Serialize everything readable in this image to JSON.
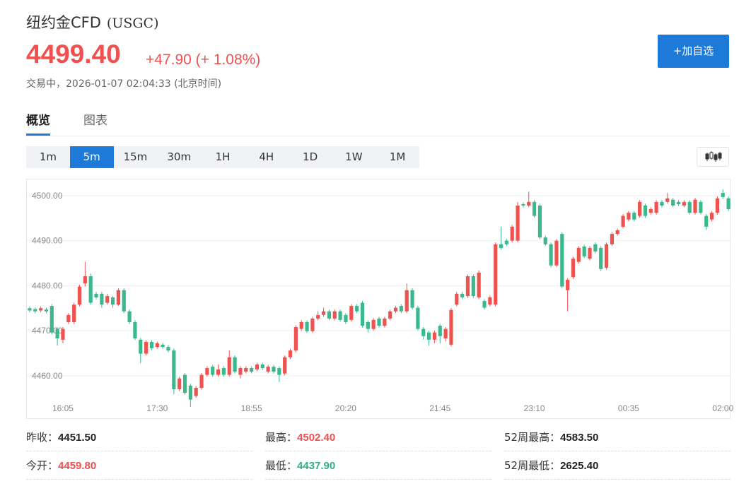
{
  "header": {
    "title": "纽约金CFD",
    "code": "(USGC)",
    "price": "4499.40",
    "change": "+47.90",
    "change_pct": "(+ 1.08%)",
    "status": "交易中，2026-01-07 02:04:33 (北京时间)"
  },
  "button": "+加自选",
  "tabs": [
    "概览",
    "图表"
  ],
  "intervals": [
    "1m",
    "5m",
    "15m",
    "30m",
    "1H",
    "4H",
    "1D",
    "1W",
    "1M"
  ],
  "chart_data": {
    "type": "candlestick",
    "up_color": "#ef5350",
    "down_color": "#3cb98c",
    "grid": true,
    "ylim": [
      4451.5,
      4503.6
    ],
    "yticks": [
      {
        "value": 4460,
        "label": "4460.00"
      },
      {
        "value": 4470,
        "label": "4470.00"
      },
      {
        "value": 4480,
        "label": "4480.00"
      },
      {
        "value": 4490,
        "label": "4490.00"
      },
      {
        "value": 4500,
        "label": "4500.00"
      }
    ],
    "categories": [
      null,
      null,
      null,
      null,
      null,
      null,
      "16:05",
      null,
      null,
      null,
      null,
      null,
      null,
      null,
      null,
      null,
      null,
      null,
      null,
      null,
      null,
      null,
      null,
      "17:30",
      null,
      null,
      null,
      null,
      null,
      null,
      null,
      null,
      null,
      null,
      null,
      null,
      null,
      null,
      null,
      null,
      "18:55",
      null,
      null,
      null,
      null,
      null,
      null,
      null,
      null,
      null,
      null,
      null,
      null,
      null,
      null,
      null,
      null,
      "20:20",
      null,
      null,
      null,
      null,
      null,
      null,
      null,
      null,
      null,
      null,
      null,
      null,
      null,
      null,
      null,
      null,
      "21:45",
      null,
      null,
      null,
      null,
      null,
      null,
      null,
      null,
      null,
      null,
      null,
      null,
      null,
      null,
      null,
      null,
      "23:10",
      null,
      null,
      null,
      null,
      null,
      null,
      null,
      null,
      null,
      null,
      null,
      null,
      null,
      null,
      null,
      null,
      "00:35",
      null,
      null,
      null,
      null,
      null,
      null,
      null,
      null,
      null,
      null,
      null,
      null,
      null,
      null,
      null,
      null,
      "02:00",
      null
    ],
    "open": [
      4475.0,
      4474.8,
      4474.5,
      4474.7,
      4475.5,
      4470.4,
      4468.0,
      4471.9,
      4471.9,
      4475.8,
      4480.5,
      4482.1,
      4478.2,
      4478.2,
      4476.2,
      4477.4,
      4475.8,
      4479.0,
      4474.3,
      4471.9,
      4468.0,
      4464.9,
      4467.5,
      4466.4,
      4466.9,
      4466.4,
      4465.6,
      4457.0,
      4460.2,
      4457.8,
      4455.5,
      4457.3,
      4460.2,
      4462.0,
      4460.2,
      4461.7,
      4460.2,
      4464.1,
      4460.2,
      4460.9,
      4461.7,
      4461.4,
      4462.5,
      4460.9,
      4462.0,
      4461.7,
      4460.5,
      4464.1,
      4465.6,
      4470.4,
      4471.9,
      4469.9,
      4472.7,
      4473.5,
      4474.3,
      4472.7,
      4474.3,
      4473.5,
      4472.4,
      4475.5,
      4476.2,
      4471.9,
      4470.4,
      4472.7,
      4471.1,
      4472.7,
      4474.3,
      4475.5,
      4474.3,
      4479.0,
      4475.1,
      4470.4,
      4469.6,
      4468.0,
      4471.1,
      4468.3,
      4466.9,
      4475.8,
      4478.2,
      4477.7,
      4482.1,
      4477.4,
      4476.6,
      4475.8,
      4475.8,
      4489.2,
      4490.0,
      4490.0,
      4490.0,
      4498.1,
      4497.8,
      4498.6,
      4497.8,
      4490.7,
      4489.2,
      4484.5,
      4491.5,
      4479.0,
      4481.9,
      4485.3,
      4488.7,
      4486.0,
      4489.2,
      4488.4,
      4484.0,
      4489.2,
      4491.5,
      4493.1,
      4494.7,
      4496.2,
      4495.5,
      4497.8,
      4496.2,
      4496.2,
      4498.6,
      4498.6,
      4499.1,
      4498.6,
      4497.8,
      4498.6,
      4496.2,
      4498.6,
      4495.5,
      4494.7,
      4496.2,
      4500.6,
      4499.4
    ],
    "high": [
      4475.4,
      4475.2,
      4475.4,
      4475.1,
      4475.9,
      4470.8,
      4470.8,
      4473.9,
      4476.2,
      4480.2,
      4485.3,
      4482.7,
      4478.6,
      4478.6,
      4478.2,
      4477.7,
      4479.4,
      4479.4,
      4474.7,
      4472.3,
      4468.4,
      4467.9,
      4467.9,
      4467.6,
      4467.3,
      4466.8,
      4466.0,
      4459.8,
      4460.6,
      4458.2,
      4457.7,
      4460.6,
      4462.1,
      4462.4,
      4462.5,
      4462.1,
      4465.6,
      4464.5,
      4462.1,
      4462.1,
      4462.1,
      4462.9,
      4462.9,
      4462.4,
      4462.4,
      4462.1,
      4464.5,
      4466.0,
      4471.2,
      4472.3,
      4472.3,
      4473.1,
      4474.3,
      4475.1,
      4474.7,
      4474.7,
      4474.7,
      4473.9,
      4475.9,
      4475.9,
      4476.6,
      4472.3,
      4472.8,
      4473.1,
      4473.1,
      4474.7,
      4475.5,
      4475.9,
      4480.5,
      4479.4,
      4475.5,
      4470.8,
      4470.0,
      4470.0,
      4471.5,
      4470.8,
      4475.0,
      4478.6,
      4478.6,
      4482.5,
      4482.5,
      4483.4,
      4477.0,
      4477.8,
      4489.6,
      4493.1,
      4490.4,
      4493.5,
      4498.6,
      4498.5,
      4500.9,
      4499.0,
      4498.2,
      4491.1,
      4489.6,
      4490.4,
      4491.9,
      4481.7,
      4486.4,
      4488.8,
      4489.1,
      4488.8,
      4489.6,
      4488.8,
      4489.6,
      4491.9,
      4492.7,
      4495.9,
      4496.6,
      4496.6,
      4499.0,
      4498.2,
      4497.4,
      4499.0,
      4499.0,
      4500.6,
      4499.5,
      4499.0,
      4499.0,
      4499.0,
      4499.5,
      4499.0,
      4495.9,
      4496.6,
      4499.8,
      4501.4,
      4499.8
    ],
    "low": [
      4474.1,
      4473.9,
      4474.1,
      4473.9,
      4469.2,
      4466.7,
      4467.2,
      4471.5,
      4471.5,
      4475.4,
      4479.8,
      4475.8,
      4477.0,
      4475.1,
      4475.8,
      4475.1,
      4475.5,
      4473.9,
      4471.5,
      4467.9,
      4462.8,
      4464.5,
      4465.7,
      4466.0,
      4466.0,
      4465.2,
      4455.9,
      4456.6,
      4455.8,
      4453.1,
      4455.1,
      4456.9,
      4459.8,
      4459.8,
      4459.8,
      4459.8,
      4459.8,
      4460.5,
      4459.4,
      4460.5,
      4460.5,
      4461.0,
      4461.3,
      4460.5,
      4460.5,
      4458.6,
      4460.1,
      4463.7,
      4465.2,
      4470.0,
      4469.5,
      4469.5,
      4472.3,
      4473.1,
      4472.3,
      4472.3,
      4472.0,
      4471.5,
      4472.0,
      4473.9,
      4470.7,
      4469.6,
      4470.0,
      4470.7,
      4470.7,
      4472.3,
      4473.9,
      4473.9,
      4473.9,
      4474.7,
      4470.0,
      4468.0,
      4466.7,
      4467.2,
      4467.2,
      4467.6,
      4466.5,
      4475.4,
      4477.0,
      4477.3,
      4477.3,
      4477.0,
      4474.7,
      4475.4,
      4475.4,
      4488.0,
      4488.8,
      4489.6,
      4489.6,
      4497.4,
      4497.4,
      4495.1,
      4490.3,
      4488.8,
      4484.1,
      4484.1,
      4479.4,
      4474.3,
      4481.5,
      4484.9,
      4486.1,
      4485.6,
      4487.2,
      4483.3,
      4483.6,
      4488.8,
      4491.1,
      4492.7,
      4494.3,
      4494.3,
      4495.1,
      4495.1,
      4495.8,
      4495.8,
      4497.4,
      4498.2,
      4497.4,
      4497.7,
      4497.4,
      4495.8,
      4495.8,
      4495.8,
      4492.4,
      4494.3,
      4495.8,
      4499.3,
      4496.6
    ],
    "close": [
      4474.5,
      4474.3,
      4475.0,
      4474.3,
      4469.6,
      4468.3,
      4470.4,
      4473.5,
      4475.8,
      4479.8,
      4482.1,
      4476.2,
      4477.4,
      4475.8,
      4477.7,
      4475.8,
      4479.0,
      4474.3,
      4471.9,
      4468.3,
      4464.9,
      4467.5,
      4466.1,
      4467.2,
      4466.4,
      4465.6,
      4457.0,
      4459.4,
      4456.2,
      4454.7,
      4457.3,
      4460.2,
      4461.7,
      4460.2,
      4461.4,
      4460.2,
      4464.1,
      4460.9,
      4461.7,
      4461.7,
      4460.9,
      4462.5,
      4461.7,
      4462.0,
      4460.9,
      4460.2,
      4464.1,
      4465.6,
      4470.8,
      4471.9,
      4469.9,
      4472.7,
      4473.5,
      4474.3,
      4472.7,
      4474.3,
      4472.4,
      4471.9,
      4475.5,
      4474.3,
      4471.1,
      4470.4,
      4472.4,
      4471.1,
      4472.7,
      4474.3,
      4475.1,
      4474.3,
      4479.0,
      4475.1,
      4470.4,
      4468.8,
      4468.0,
      4469.6,
      4468.8,
      4470.4,
      4474.6,
      4478.2,
      4477.4,
      4482.1,
      4477.7,
      4482.9,
      4475.1,
      4477.4,
      4489.2,
      4488.4,
      4489.2,
      4493.1,
      4497.8,
      4497.8,
      4498.6,
      4495.5,
      4490.7,
      4489.2,
      4484.5,
      4490.0,
      4479.8,
      4481.3,
      4486.0,
      4488.4,
      4486.5,
      4488.4,
      4487.6,
      4483.7,
      4489.2,
      4491.5,
      4492.3,
      4495.5,
      4496.2,
      4494.7,
      4498.6,
      4495.5,
      4497.0,
      4498.6,
      4497.8,
      4499.4,
      4497.8,
      4498.1,
      4498.6,
      4496.2,
      4499.1,
      4496.2,
      4493.1,
      4496.2,
      4499.4,
      4499.7,
      4497.0
    ]
  },
  "stats": [
    {
      "label": "昨收：",
      "value": "4451.50"
    },
    {
      "label": "最高：",
      "value": "4502.40"
    },
    {
      "label": "52周最高：",
      "value": "4583.50"
    },
    {
      "label": "今开：",
      "value": "4459.80"
    },
    {
      "label": "最低：",
      "value": "4437.90"
    },
    {
      "label": "52周最低：",
      "value": "2625.40"
    }
  ]
}
